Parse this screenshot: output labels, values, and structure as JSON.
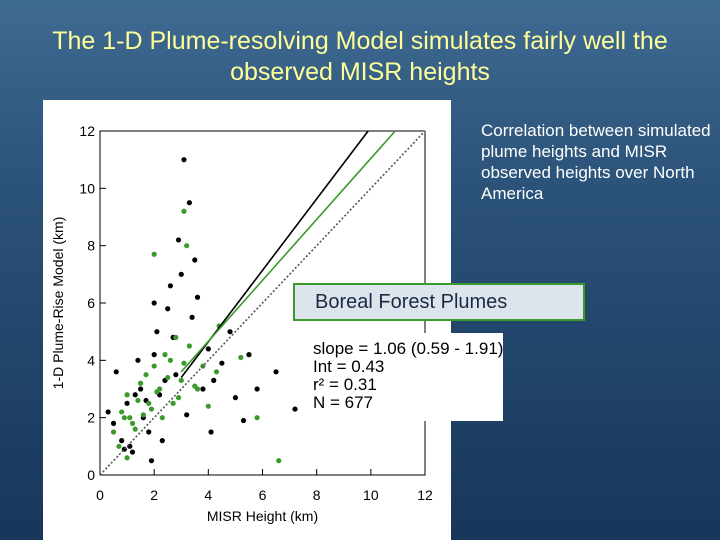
{
  "title": "The 1-D Plume-resolving Model simulates fairly well the observed MISR heights",
  "side_text": "Correlation between simulated plume heights and MISR observed heights over North America",
  "callout": "Boreal Forest Plumes",
  "chart_data": {
    "type": "scatter",
    "xlabel": "MISR Height (km)",
    "ylabel": "1-D Plume-Rise Model (km)",
    "xlim": [
      0,
      12
    ],
    "ylim": [
      0,
      12
    ],
    "xticks": [
      0,
      2,
      4,
      6,
      8,
      10,
      12
    ],
    "yticks": [
      0,
      2,
      4,
      6,
      8,
      10,
      12
    ],
    "series": [
      {
        "color": "#000000",
        "x": [
          0.5,
          0.8,
          1.0,
          1.2,
          1.5,
          1.8,
          2.0,
          2.2,
          2.5,
          2.8,
          3.0,
          3.3,
          3.6,
          4.0,
          4.5,
          5.0,
          0.3,
          0.6,
          1.1,
          1.6,
          2.1,
          2.6,
          3.1,
          3.8,
          1.4,
          1.9,
          2.4,
          2.9,
          3.4,
          0.9,
          1.7,
          2.3,
          3.2,
          4.2,
          5.5,
          6.5,
          5.3,
          7.2,
          4.8,
          2.7,
          3.5,
          4.1,
          5.8,
          1.3,
          2.0
        ],
        "values": [
          1.8,
          1.2,
          2.5,
          0.8,
          3.0,
          1.5,
          4.2,
          2.8,
          5.8,
          3.5,
          7.0,
          9.5,
          6.2,
          4.4,
          3.9,
          2.7,
          2.2,
          3.6,
          1.0,
          2.0,
          5.0,
          6.6,
          11.0,
          3.0,
          4.0,
          0.5,
          3.3,
          8.2,
          5.5,
          0.9,
          2.6,
          1.2,
          2.1,
          3.3,
          4.2,
          3.6,
          1.9,
          2.3,
          5.0,
          4.8,
          7.5,
          1.5,
          3.0,
          2.8,
          6.0
        ]
      },
      {
        "color": "#3a9a2a",
        "x": [
          0.5,
          0.8,
          1.0,
          1.2,
          1.5,
          1.8,
          2.0,
          2.3,
          2.6,
          3.0,
          3.3,
          3.6,
          4.0,
          4.3,
          0.7,
          1.1,
          1.4,
          1.7,
          2.1,
          2.5,
          2.8,
          3.1,
          3.5,
          1.3,
          1.9,
          2.4,
          2.9,
          3.8,
          5.8,
          6.6,
          3.2,
          3.1,
          1.0,
          1.6,
          2.2,
          2.7,
          4.4,
          5.2,
          0.9,
          2.0
        ],
        "values": [
          1.5,
          2.2,
          2.8,
          1.8,
          3.2,
          2.5,
          3.8,
          2.0,
          4.0,
          3.3,
          4.5,
          3.0,
          2.4,
          3.6,
          1.0,
          2.0,
          2.6,
          3.5,
          2.9,
          3.4,
          4.8,
          3.9,
          3.1,
          1.6,
          2.3,
          4.2,
          2.7,
          3.8,
          2.0,
          0.5,
          8.0,
          9.2,
          0.6,
          2.1,
          3.0,
          2.5,
          5.2,
          4.1,
          2.0,
          7.7
        ]
      }
    ],
    "lines": [
      {
        "color": "#555555",
        "dash": true,
        "x": [
          0,
          12
        ],
        "values": [
          0,
          12
        ]
      },
      {
        "color": "#000000",
        "dash": false,
        "x": [
          3,
          9.9
        ],
        "values": [
          3.4,
          12
        ]
      },
      {
        "color": "#3a9a2a",
        "dash": false,
        "x": [
          3,
          10.9
        ],
        "values": [
          3.6,
          12
        ]
      }
    ],
    "stats": [
      "slope = 1.06 (0.59 - 1.91)",
      "Int = 0.43",
      "r² = 0.31",
      "N = 677"
    ]
  }
}
